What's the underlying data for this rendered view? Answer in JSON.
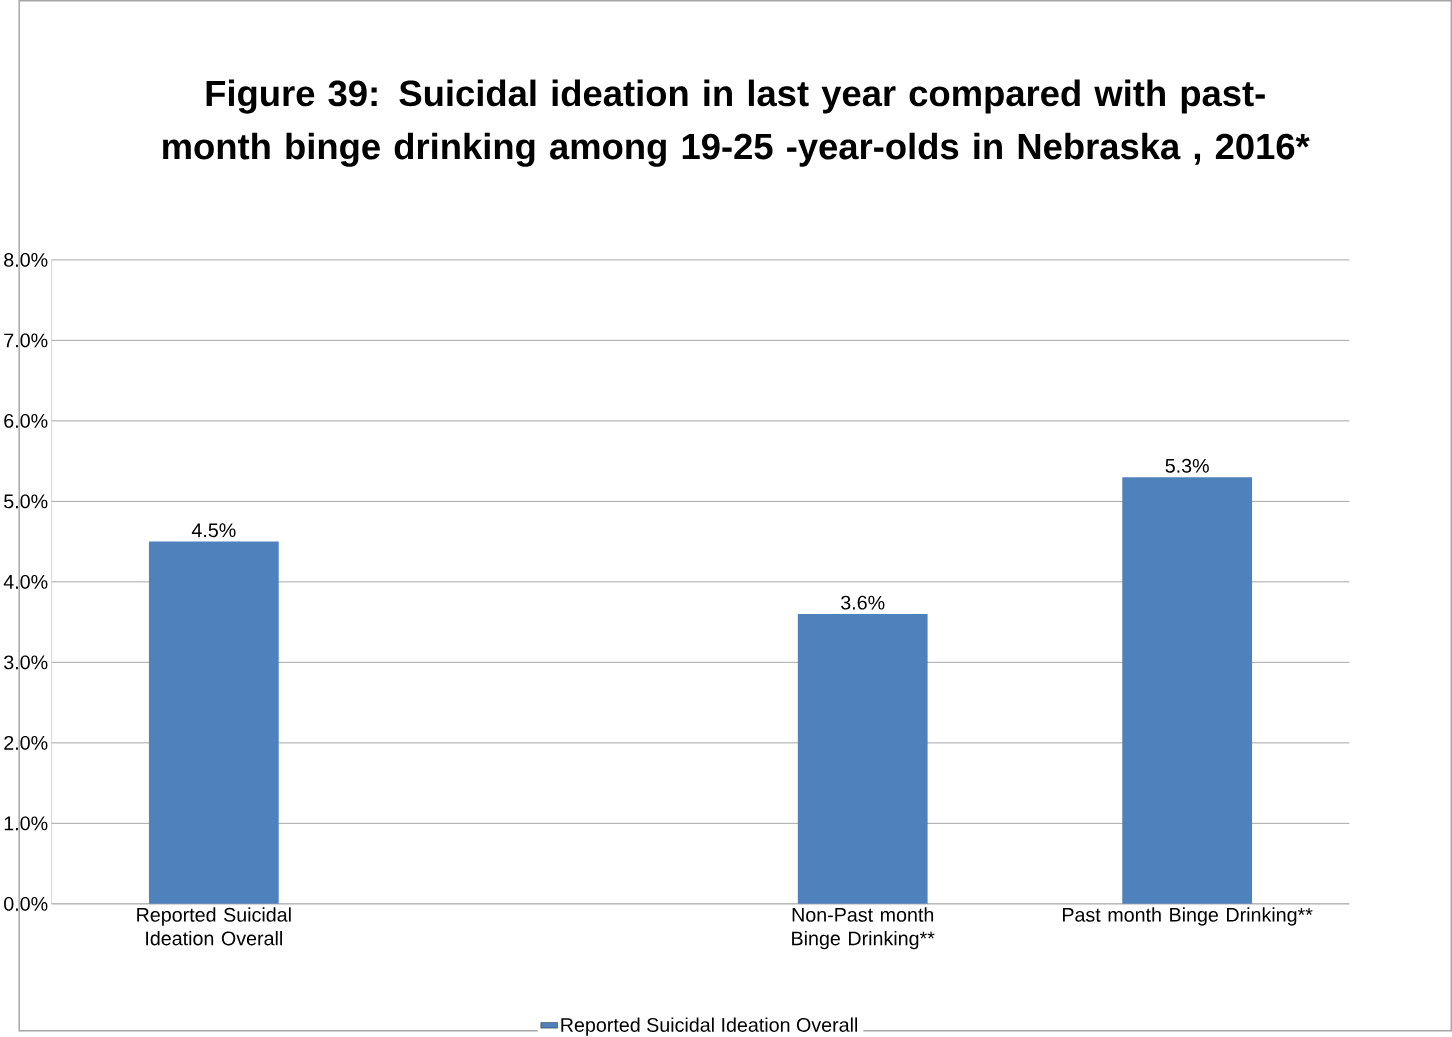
{
  "chart_data": {
    "type": "bar",
    "title": "Figure 39: Suicidal ideation in last year compared with past-month binge drinking among 19-25 -year-olds in Nebraska , 2016*",
    "categories": [
      "Reported Suicidal Ideation Overall",
      null,
      "Non-Past month Binge Drinking**",
      "Past month Binge Drinking**"
    ],
    "series": [
      {
        "name": "Reported Suicidal Ideation Overall",
        "color": "#4f81bd",
        "values": [
          4.5,
          null,
          3.6,
          5.3
        ],
        "value_labels": [
          "4.5%",
          null,
          "3.6%",
          "5.3%"
        ]
      }
    ],
    "ylim": [
      0,
      8
    ],
    "yticks": [
      {
        "value": 0,
        "label": "0.0%"
      },
      {
        "value": 1,
        "label": "1.0%"
      },
      {
        "value": 2,
        "label": "2.0%"
      },
      {
        "value": 3,
        "label": "3.0%"
      },
      {
        "value": 4,
        "label": "4.0%"
      },
      {
        "value": 5,
        "label": "5.0%"
      },
      {
        "value": 6,
        "label": "6.0%"
      },
      {
        "value": 7,
        "label": "7.0%"
      },
      {
        "value": 8,
        "label": "8.0%"
      }
    ],
    "grid": "y",
    "legend": "bottom"
  }
}
